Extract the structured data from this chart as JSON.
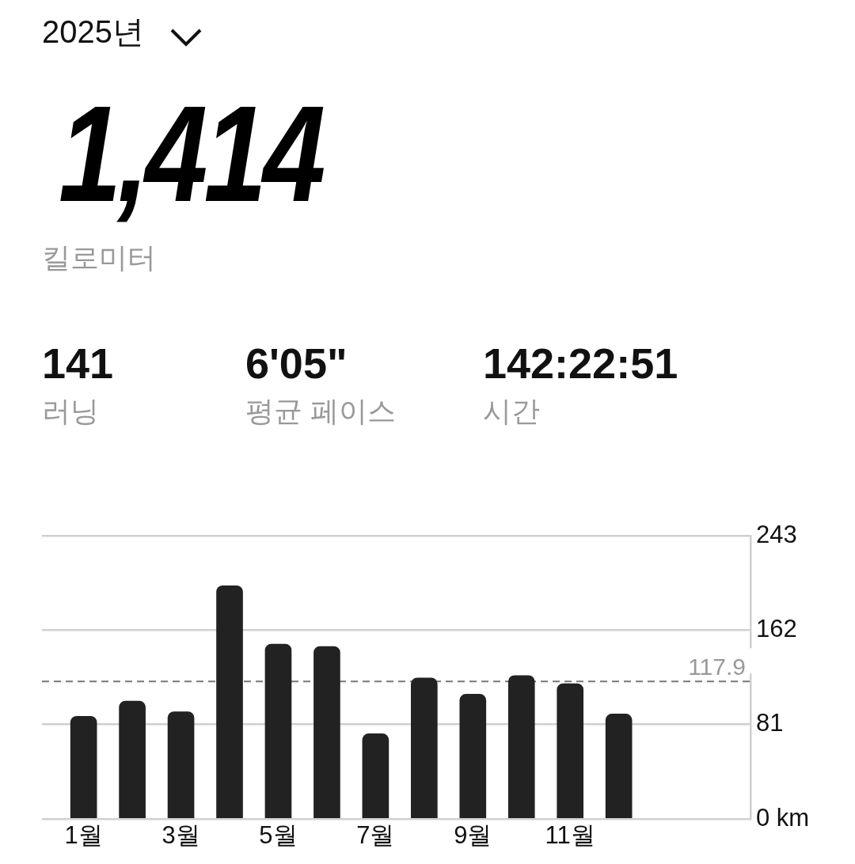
{
  "chart_data": {
    "type": "bar",
    "title": "2025년",
    "annotations": [
      "1,414",
      "킬로미터",
      "141",
      "러닝",
      "6'05\"",
      "평균 페이스",
      "142:22:51",
      "시간"
    ],
    "categories": [
      "1월",
      null,
      "3월",
      null,
      "5월",
      null,
      "7월",
      null,
      "9월",
      null,
      "11월",
      null
    ],
    "values": [
      88,
      101,
      92,
      200,
      150,
      148,
      73,
      121,
      107,
      123,
      116,
      90
    ],
    "color": "#222222",
    "ylim": [
      0,
      243
    ],
    "yticks": [
      {
        "value": 0,
        "label": "0 km"
      },
      81,
      162,
      243
    ],
    "ref_lines": [
      {
        "axis": "y",
        "value": 117.9,
        "label": "117.9",
        "color": "#777777",
        "line_style": "dashed"
      }
    ],
    "grid": "y",
    "legend": false
  }
}
